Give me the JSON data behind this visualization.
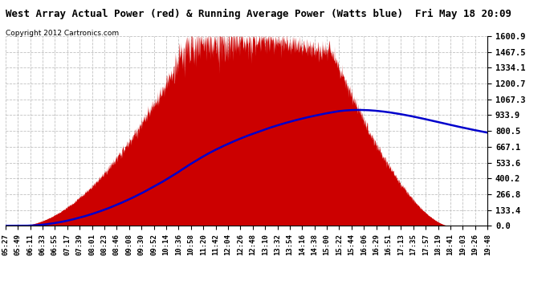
{
  "title": "West Array Actual Power (red) & Running Average Power (Watts blue)  Fri May 18 20:09",
  "copyright": "Copyright 2012 Cartronics.com",
  "yticks": [
    0.0,
    133.4,
    266.8,
    400.2,
    533.6,
    667.1,
    800.5,
    933.9,
    1067.3,
    1200.7,
    1334.1,
    1467.5,
    1600.9
  ],
  "ymax": 1600.9,
  "ymin": 0.0,
  "bg_color": "#ffffff",
  "grid_color": "#bbbbbb",
  "fill_color": "#cc0000",
  "avg_color": "#0000cc",
  "xtick_labels": [
    "05:27",
    "05:49",
    "06:11",
    "06:33",
    "06:55",
    "07:17",
    "07:39",
    "08:01",
    "08:23",
    "08:46",
    "09:08",
    "09:30",
    "09:52",
    "10:14",
    "10:36",
    "10:58",
    "11:20",
    "11:42",
    "12:04",
    "12:26",
    "12:48",
    "13:10",
    "13:32",
    "13:54",
    "14:16",
    "14:38",
    "15:00",
    "15:22",
    "15:44",
    "16:06",
    "16:29",
    "16:51",
    "17:13",
    "17:35",
    "17:57",
    "18:19",
    "18:41",
    "19:03",
    "19:26",
    "19:48"
  ]
}
